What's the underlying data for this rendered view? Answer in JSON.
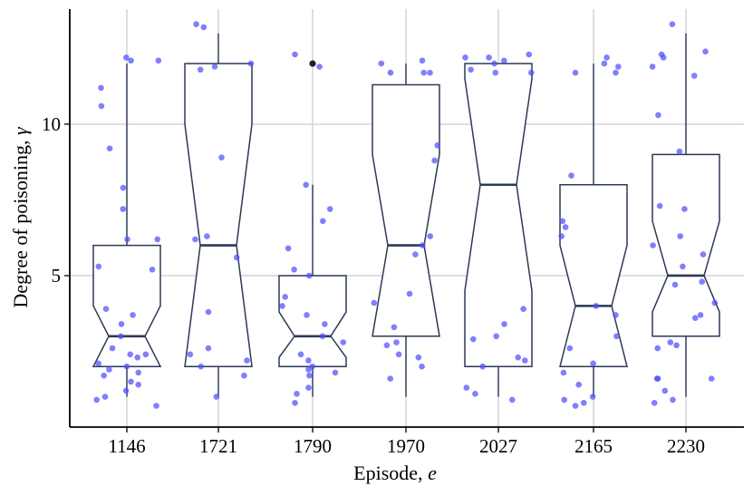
{
  "chart_data": {
    "type": "boxplot",
    "notched": true,
    "xlabel": "Episode,",
    "xlabel_var": "e",
    "ylabel": "Degree of poisoning,",
    "ylabel_var": "γ",
    "ylim": [
      0,
      13.8
    ],
    "yticks": [
      5,
      10
    ],
    "grid": true,
    "colors": {
      "points": "#4d4dff",
      "box": "#2b3a55",
      "outlier": "#222222",
      "grid": "#d4d4d4"
    },
    "categories": [
      "1146",
      "1721",
      "1790",
      "1970",
      "2027",
      "2165",
      "2230"
    ],
    "boxes": [
      {
        "q1": 2,
        "median": 3,
        "q3": 6,
        "whislo": 1,
        "whishi": 12,
        "notch": [
          2,
          4
        ],
        "outliers": []
      },
      {
        "q1": 2,
        "median": 6,
        "q3": 12,
        "whislo": 1,
        "whishi": 13,
        "notch": [
          2,
          10
        ],
        "outliers": []
      },
      {
        "q1": 2,
        "median": 3,
        "q3": 5,
        "whislo": 1,
        "whishi": 8,
        "notch": [
          2.3,
          3.8
        ],
        "outliers": [
          12
        ]
      },
      {
        "q1": 3,
        "median": 6,
        "q3": 11.3,
        "whislo": 1,
        "whishi": 12,
        "notch": [
          3,
          9
        ],
        "outliers": []
      },
      {
        "q1": 2,
        "median": 8,
        "q3": 12,
        "whislo": 1,
        "whishi": 12,
        "notch": [
          4.5,
          11.5
        ],
        "outliers": []
      },
      {
        "q1": 2,
        "median": 4,
        "q3": 8,
        "whislo": 1,
        "whishi": 12,
        "notch": [
          2,
          6
        ],
        "outliers": []
      },
      {
        "q1": 3,
        "median": 5,
        "q3": 9,
        "whislo": 1,
        "whishi": 13,
        "notch": [
          3.8,
          6.8
        ],
        "outliers": []
      }
    ],
    "points": [
      {
        "category": "1146",
        "values": [
          12.2,
          12.1,
          11.2,
          9.2,
          7.2,
          6.2,
          5.3,
          5.2,
          3.7,
          3.0,
          2.6,
          2.4,
          2.3,
          2.1,
          2.0,
          1.9,
          1.8,
          1.7,
          1.5,
          1.2,
          1.0,
          0.9,
          0.7,
          12.1,
          10.6,
          7.9,
          6.2,
          3.9,
          3.4,
          2.4,
          1.4
        ]
      },
      {
        "category": "1721",
        "values": [
          13.2,
          13.3,
          12.0,
          11.9,
          11.8,
          8.9,
          6.3,
          6.2,
          5.6,
          3.8,
          2.6,
          2.4,
          2.2,
          2.0,
          1.7,
          1.0
        ]
      },
      {
        "category": "1790",
        "values": [
          12.3,
          11.9,
          8.0,
          7.2,
          6.8,
          5.9,
          5.2,
          5.0,
          4.3,
          4.0,
          3.7,
          3.4,
          3.0,
          2.8,
          2.4,
          2.2,
          2.0,
          1.9,
          1.8,
          1.7,
          1.3,
          1.1,
          0.8
        ]
      },
      {
        "category": "1970",
        "values": [
          12.1,
          12.0,
          11.7,
          11.7,
          11.7,
          9.3,
          8.8,
          6.3,
          6.0,
          5.7,
          4.4,
          4.1,
          3.3,
          2.8,
          2.7,
          2.4,
          2.3,
          2.0,
          1.6
        ]
      },
      {
        "category": "2027",
        "values": [
          12.3,
          12.2,
          12.2,
          12.1,
          12.0,
          11.8,
          11.7,
          11.7,
          3.9,
          3.4,
          3.0,
          2.9,
          2.3,
          2.2,
          2.0,
          1.3,
          1.1,
          0.9
        ]
      },
      {
        "category": "2165",
        "values": [
          12.2,
          12.0,
          11.9,
          11.7,
          11.7,
          8.3,
          6.8,
          6.6,
          6.3,
          4.0,
          3.7,
          3.0,
          2.6,
          2.1,
          1.8,
          1.4,
          1.0,
          0.9,
          0.8,
          0.7
        ]
      },
      {
        "category": "2230",
        "values": [
          13.3,
          12.4,
          12.3,
          12.2,
          11.9,
          11.6,
          10.3,
          9.1,
          7.3,
          7.2,
          6.3,
          6.0,
          5.7,
          5.3,
          4.8,
          4.7,
          4.1,
          3.7,
          3.6,
          2.8,
          2.7,
          2.6,
          1.6,
          1.6,
          1.6,
          1.2,
          0.9,
          0.8
        ]
      }
    ]
  }
}
